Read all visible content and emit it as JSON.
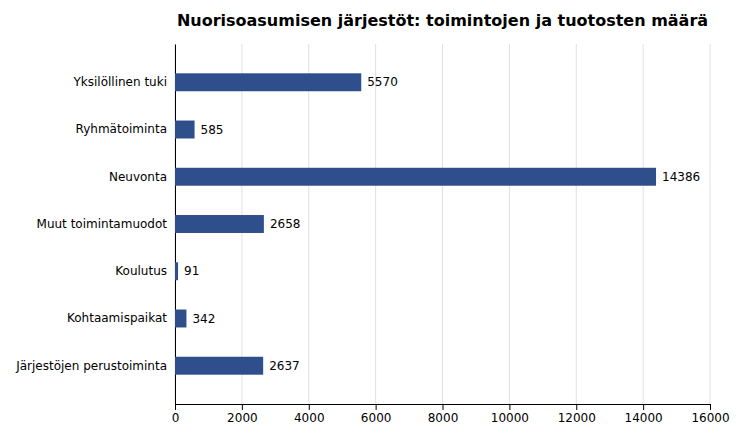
{
  "chart_data": {
    "type": "bar",
    "orientation": "horizontal",
    "title": "Nuorisoasumisen järjestöt: toimintojen ja tuotosten määrä",
    "categories": [
      "Järjestöjen perustoiminta",
      "Kohtaamispaikat",
      "Koulutus",
      "Muut toimintamuodot",
      "Neuvonta",
      "Ryhmätoiminta",
      "Yksilöllinen tuki"
    ],
    "values": [
      2637,
      342,
      91,
      2658,
      14386,
      585,
      5570
    ],
    "color": "#2E4F8C",
    "xlim": [
      0,
      16000
    ],
    "xticks": [
      0,
      2000,
      4000,
      6000,
      8000,
      10000,
      12000,
      14000,
      16000
    ],
    "grid": true,
    "data_labels": true
  }
}
